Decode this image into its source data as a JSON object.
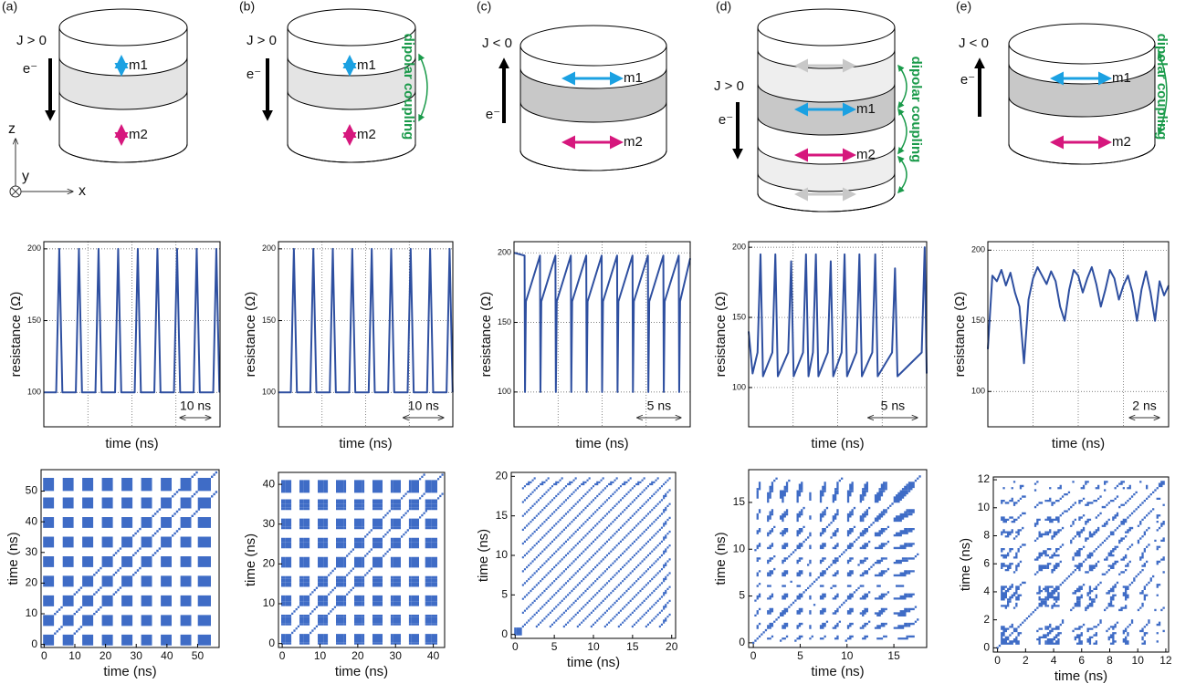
{
  "panels": [
    {
      "label": "(a)",
      "current": "J > 0",
      "electron": "e⁻",
      "m1": "m1",
      "m2": "m2"
    },
    {
      "label": "(b)",
      "current": "J > 0",
      "electron": "e⁻",
      "m1": "m1",
      "m2": "m2",
      "coupling": "dipolar coupling"
    },
    {
      "label": "(c)",
      "current": "J < 0",
      "electron": "e⁻",
      "m1": "m1",
      "m2": "m2"
    },
    {
      "label": "(d)",
      "current": "J > 0",
      "electron": "e⁻",
      "m1": "m1",
      "m2": "m2",
      "coupling": "dipolar coupling"
    },
    {
      "label": "(e)",
      "current": "J < 0",
      "electron": "e⁻",
      "m1": "m1",
      "m2": "m2",
      "coupling": "dipolar coupling"
    }
  ],
  "axes_labels": {
    "z": "z",
    "y": "y",
    "x": "x"
  },
  "chart_data": [
    {
      "type": "line",
      "x_label": "time (ns)",
      "y_label": "resistance (Ω)",
      "color": "#2e4fa0",
      "grid": true,
      "x": [
        0,
        4,
        5,
        6,
        10.35,
        11.35,
        12.35,
        16.7,
        17.7,
        18.7,
        23.05,
        24.05,
        25.05,
        29.4,
        30.4,
        31.4,
        35.75,
        36.75,
        37.75,
        42.1,
        43.1,
        44.1,
        48.45,
        49.45,
        50.45,
        54.8,
        55.8,
        56.8
      ],
      "values": [
        100,
        100,
        200,
        100,
        100,
        200,
        100,
        100,
        200,
        100,
        100,
        200,
        100,
        100,
        200,
        100,
        100,
        200,
        100,
        100,
        200,
        100,
        100,
        200,
        100,
        100,
        200,
        100
      ],
      "xlim": [
        0,
        57
      ],
      "ylim": [
        76,
        205
      ],
      "yticks": [
        100,
        150,
        200
      ],
      "scale_bar": {
        "value": 10,
        "label": "10 ns"
      }
    },
    {
      "type": "line",
      "x_label": "time (ns)",
      "y_label": "resistance (Ω)",
      "color": "#2e4fa0",
      "grid": true,
      "x": [
        0,
        3.05,
        3.8,
        4.55,
        7.85,
        8.6,
        9.35,
        12.65,
        13.4,
        14.15,
        17.45,
        18.2,
        18.95,
        22.25,
        23,
        23.75,
        27.05,
        27.8,
        28.55,
        31.85,
        32.6,
        33.35,
        36.65,
        37.4,
        38.15,
        41.45,
        42.2,
        42.95
      ],
      "values": [
        100,
        100,
        200,
        100,
        100,
        200,
        100,
        100,
        200,
        100,
        100,
        200,
        100,
        100,
        200,
        100,
        100,
        200,
        100,
        100,
        200,
        100,
        100,
        200,
        100,
        100,
        200,
        100
      ],
      "xlim": [
        0,
        43
      ],
      "ylim": [
        76,
        205
      ],
      "yticks": [
        100,
        150,
        200
      ],
      "scale_bar": {
        "value": 10,
        "label": "10 ns"
      }
    },
    {
      "type": "line",
      "x_label": "time (ns)",
      "y_label": "resistance (Ω)",
      "color": "#2e4fa0",
      "grid": true,
      "x": [
        0,
        1.2,
        1.25,
        1.35,
        2.95,
        3,
        3.1,
        4.7,
        4.75,
        4.85,
        6.45,
        6.5,
        6.6,
        8.2,
        8.25,
        8.35,
        9.95,
        10,
        10.1,
        11.7,
        11.75,
        11.85,
        13.45,
        13.5,
        13.6,
        15.2,
        15.25,
        15.35,
        16.95,
        17,
        17.1,
        18.7,
        18.75,
        18.85,
        20
      ],
      "values": [
        200,
        198,
        100,
        165,
        198,
        100,
        165,
        198,
        100,
        165,
        198,
        100,
        165,
        198,
        100,
        165,
        198,
        100,
        165,
        198,
        100,
        165,
        198,
        100,
        165,
        198,
        100,
        165,
        198,
        100,
        165,
        198,
        100,
        165,
        196
      ],
      "xlim": [
        0,
        20
      ],
      "ylim": [
        75,
        208
      ],
      "yticks": [
        100,
        150,
        200
      ],
      "scale_bar": {
        "value": 5,
        "label": "5 ns"
      }
    },
    {
      "type": "line",
      "x_label": "time (ns)",
      "y_label": "resistance (Ω)",
      "color": "#2e4fa0",
      "grid": true,
      "x": [
        0,
        0.4,
        0.9,
        1.2,
        1.45,
        2.4,
        2.7,
        2.95,
        4,
        4.3,
        4.55,
        5.5,
        5.8,
        6.05,
        6.5,
        6.8,
        7.05,
        8,
        8.3,
        8.55,
        9.4,
        9.7,
        9.95,
        10.9,
        11.2,
        11.45,
        12.5,
        12.8,
        13.05,
        14.5,
        14.8,
        15.05,
        17.5,
        17.8,
        18
      ],
      "values": [
        140,
        110,
        125,
        195,
        108,
        125,
        195,
        108,
        125,
        190,
        108,
        125,
        195,
        108,
        125,
        195,
        108,
        125,
        190,
        108,
        125,
        195,
        108,
        125,
        195,
        108,
        125,
        195,
        108,
        125,
        185,
        108,
        125,
        200,
        110
      ],
      "xlim": [
        0,
        18
      ],
      "ylim": [
        72,
        204
      ],
      "yticks": [
        100,
        150,
        200
      ],
      "scale_bar": {
        "value": 5,
        "label": "5 ns"
      }
    },
    {
      "type": "line",
      "x_label": "time (ns)",
      "y_label": "resistance (Ω)",
      "color": "#2e4fa0",
      "grid": true,
      "x": [
        0,
        0.3,
        0.6,
        0.9,
        1.2,
        1.5,
        1.8,
        2.1,
        2.4,
        2.7,
        3,
        3.3,
        3.6,
        3.9,
        4.2,
        4.5,
        4.8,
        5.1,
        5.4,
        5.7,
        6,
        6.3,
        6.6,
        6.9,
        7.2,
        7.5,
        7.8,
        8.1,
        8.4,
        8.7,
        9,
        9.3,
        9.6,
        9.9,
        10.2,
        10.5,
        10.8,
        11.1,
        11.4,
        11.7,
        12
      ],
      "values": [
        130,
        182,
        178,
        186,
        175,
        184,
        170,
        160,
        120,
        165,
        180,
        188,
        182,
        176,
        185,
        178,
        160,
        150,
        172,
        186,
        182,
        170,
        180,
        188,
        176,
        160,
        172,
        186,
        180,
        165,
        175,
        182,
        170,
        150,
        172,
        185,
        170,
        150,
        178,
        168,
        175
      ],
      "xlim": [
        0,
        12
      ],
      "ylim": [
        75,
        206
      ],
      "yticks": [
        100,
        150,
        200
      ],
      "scale_bar": {
        "value": 2,
        "label": "2 ns"
      }
    },
    {
      "type": "recurrence",
      "x_label": "time (ns)",
      "y_label": "time (ns)",
      "color": "#2a5cc0",
      "xlim": [
        -1,
        57
      ],
      "ylim": [
        -1,
        57
      ],
      "xticks": [
        0,
        10,
        20,
        30,
        40,
        50
      ],
      "yticks": [
        0,
        10,
        20,
        30,
        40,
        50
      ]
    },
    {
      "type": "recurrence",
      "x_label": "time (ns)",
      "y_label": "time (ns)",
      "color": "#2a5cc0",
      "xlim": [
        -1,
        43
      ],
      "ylim": [
        -1,
        43
      ],
      "xticks": [
        0,
        10,
        20,
        30,
        40
      ],
      "yticks": [
        0,
        10,
        20,
        30,
        40
      ]
    },
    {
      "type": "recurrence",
      "x_label": "time (ns)",
      "y_label": "time (ns)",
      "color": "#2a5cc0",
      "xlim": [
        -0.5,
        20.5
      ],
      "ylim": [
        -0.5,
        20.5
      ],
      "xticks": [
        0,
        5,
        10,
        15,
        20
      ],
      "yticks": [
        0,
        5,
        10,
        15,
        20
      ]
    },
    {
      "type": "recurrence",
      "x_label": "time (ns)",
      "y_label": "time (ns)",
      "color": "#2a5cc0",
      "xlim": [
        -0.5,
        18.5
      ],
      "ylim": [
        -0.5,
        18.5
      ],
      "xticks": [
        0,
        5,
        10,
        15
      ],
      "yticks": [
        0,
        5,
        10,
        15
      ]
    },
    {
      "type": "recurrence",
      "x_label": "time (ns)",
      "y_label": "time (ns)",
      "color": "#2a5cc0",
      "xlim": [
        -0.3,
        12.2
      ],
      "ylim": [
        -0.3,
        12.2
      ],
      "xticks": [
        0,
        2,
        4,
        6,
        8,
        10,
        12
      ],
      "yticks": [
        0,
        2,
        4,
        6,
        8,
        10,
        12
      ]
    }
  ]
}
